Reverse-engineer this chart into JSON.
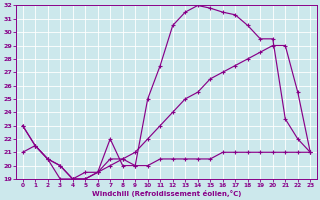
{
  "xlabel": "Windchill (Refroidissement éolien,°C)",
  "bg_color": "#cce8ec",
  "line_color": "#880088",
  "grid_color": "#ffffff",
  "xlim": [
    -0.5,
    23.5
  ],
  "ylim": [
    19,
    32
  ],
  "xticks": [
    0,
    1,
    2,
    3,
    4,
    5,
    6,
    7,
    8,
    9,
    10,
    11,
    12,
    13,
    14,
    15,
    16,
    17,
    18,
    19,
    20,
    21,
    22,
    23
  ],
  "yticks": [
    19,
    20,
    21,
    22,
    23,
    24,
    25,
    26,
    27,
    28,
    29,
    30,
    31,
    32
  ],
  "line1_x": [
    0,
    1,
    2,
    3,
    4,
    5,
    6,
    7,
    8,
    9,
    10,
    11,
    12,
    13,
    14,
    15,
    16,
    17,
    18,
    19,
    20,
    21,
    22,
    23
  ],
  "line1_y": [
    21.0,
    21.5,
    20.5,
    19.0,
    19.0,
    19.5,
    19.5,
    22.0,
    20.0,
    20.0,
    20.0,
    20.5,
    20.5,
    20.5,
    20.5,
    20.5,
    21.0,
    21.0,
    21.0,
    21.0,
    21.0,
    21.0,
    21.0,
    21.0
  ],
  "line2_x": [
    0,
    1,
    2,
    3,
    4,
    5,
    6,
    7,
    8,
    9,
    10,
    11,
    12,
    13,
    14,
    15,
    16,
    17,
    18,
    19,
    20,
    21,
    22,
    23
  ],
  "line2_y": [
    23.0,
    21.5,
    20.5,
    20.0,
    19.0,
    19.0,
    19.5,
    20.0,
    20.5,
    20.0,
    25.0,
    27.5,
    30.5,
    31.5,
    32.0,
    31.8,
    31.5,
    31.3,
    30.5,
    29.5,
    29.5,
    23.5,
    22.0,
    21.0
  ],
  "line3_x": [
    0,
    1,
    2,
    3,
    4,
    5,
    6,
    7,
    8,
    9,
    10,
    11,
    12,
    13,
    14,
    15,
    16,
    17,
    18,
    19,
    20,
    21,
    22,
    23
  ],
  "line3_y": [
    23.0,
    21.5,
    20.5,
    20.0,
    19.0,
    19.0,
    19.5,
    20.5,
    20.5,
    21.0,
    22.0,
    23.0,
    24.0,
    25.0,
    25.5,
    26.5,
    27.0,
    27.5,
    28.0,
    28.5,
    29.0,
    29.0,
    25.5,
    21.0
  ]
}
